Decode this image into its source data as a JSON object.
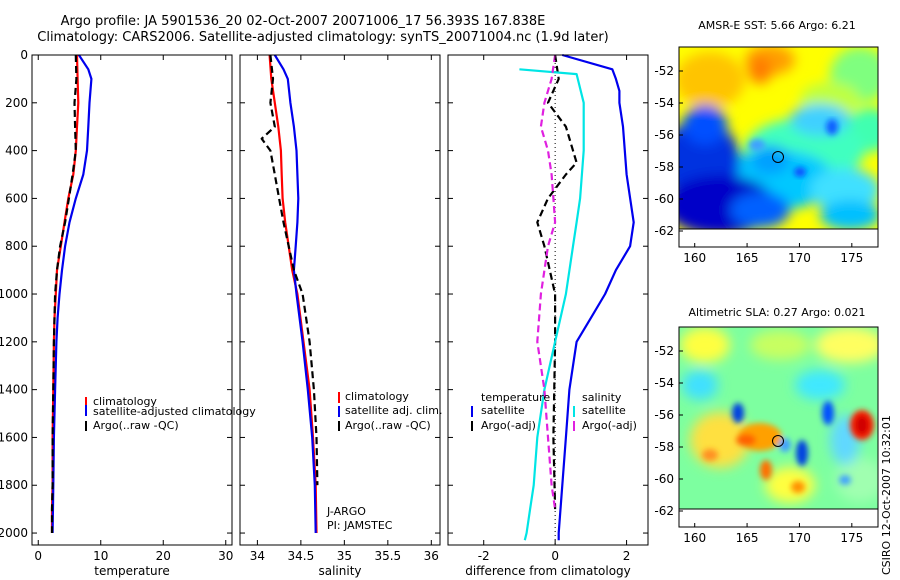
{
  "header": {
    "line1": "Argo profile: JA 5901536_20 02-Oct-2007 20071006_17 56.393S 167.838E",
    "line2": "Climatology: CARS2006. Satellite-adjusted climatology: synTS_20071004.nc (1.9d later)"
  },
  "footer_stamp": "CSIRO 12-Oct-2007 10:32:01",
  "colors": {
    "red": "#ff0000",
    "blue": "#0000ee",
    "black": "#000000",
    "cyan": "#00e5e5",
    "magenta": "#e020e0"
  },
  "chart_data": [
    {
      "id": "temperature",
      "type": "line",
      "xlabel": "temperature",
      "ylabel": "",
      "xlim": [
        -1,
        31
      ],
      "ylim": [
        2050,
        0
      ],
      "xticks": [
        0,
        10,
        20,
        30
      ],
      "yticks": [
        0,
        200,
        400,
        600,
        800,
        1000,
        1200,
        1400,
        1600,
        1800,
        2000
      ],
      "legend": {
        "placement": "lower-right",
        "entries": [
          "climatology",
          "satellite-adjusted climatology",
          "Argo(..raw -QC)"
        ]
      },
      "series": [
        {
          "name": "climatology",
          "color": "red",
          "dash": "solid",
          "x": [
            6.2,
            6.3,
            6.4,
            6.2,
            6.0,
            5.6,
            4.8,
            4.2,
            3.6,
            3.0,
            2.8,
            2.6,
            2.5,
            2.4,
            2.3,
            2.3,
            2.2,
            2.2
          ],
          "y": [
            0,
            100,
            200,
            300,
            400,
            500,
            600,
            700,
            800,
            900,
            1000,
            1100,
            1200,
            1400,
            1600,
            1800,
            1900,
            2000
          ]
        },
        {
          "name": "satellite-adjusted climatology",
          "color": "blue",
          "dash": "solid",
          "x": [
            6.5,
            8.0,
            8.5,
            8.2,
            8.0,
            7.8,
            7.2,
            6.0,
            5.0,
            4.3,
            3.8,
            3.4,
            3.1,
            2.9,
            2.7,
            2.5,
            2.4,
            2.3
          ],
          "y": [
            0,
            60,
            100,
            200,
            300,
            400,
            500,
            600,
            700,
            800,
            900,
            1000,
            1100,
            1200,
            1400,
            1600,
            1800,
            2000
          ]
        },
        {
          "name": "Argo(..raw -QC)",
          "color": "black",
          "dash": "dash",
          "x": [
            6.0,
            6.1,
            5.8,
            5.9,
            6.0,
            5.5,
            4.9,
            4.3,
            3.5,
            3.0,
            2.7,
            2.6,
            2.5,
            2.4,
            2.3,
            2.3,
            2.2,
            2.2
          ],
          "y": [
            0,
            100,
            200,
            300,
            400,
            500,
            600,
            700,
            800,
            900,
            1000,
            1100,
            1200,
            1400,
            1600,
            1800,
            1900,
            2000
          ]
        }
      ]
    },
    {
      "id": "salinity",
      "type": "line",
      "xlabel": "salinity",
      "ylabel": "",
      "xlim": [
        33.8,
        36.1
      ],
      "ylim": [
        2050,
        0
      ],
      "xticks": [
        34,
        34.5,
        35,
        35.5,
        36
      ],
      "yticks": [
        0,
        200,
        400,
        600,
        800,
        1000,
        1200,
        1400,
        1600,
        1800,
        2000
      ],
      "legend": {
        "placement": "lower-right",
        "entries": [
          "climatology",
          "satellite adj. clim.",
          "Argo(..raw -QC)"
        ]
      },
      "annotations": [
        "J-ARGO",
        "PI: JAMSTEC"
      ],
      "series": [
        {
          "name": "climatology",
          "color": "red",
          "dash": "solid",
          "x": [
            34.14,
            34.16,
            34.2,
            34.24,
            34.27,
            34.28,
            34.29,
            34.32,
            34.36,
            34.4,
            34.46,
            34.53,
            34.6,
            34.64,
            34.67,
            34.68
          ],
          "y": [
            0,
            100,
            200,
            300,
            400,
            500,
            600,
            700,
            800,
            900,
            1000,
            1200,
            1400,
            1600,
            1800,
            2000
          ]
        },
        {
          "name": "satellite adj. clim.",
          "color": "blue",
          "dash": "solid",
          "x": [
            34.2,
            34.3,
            34.35,
            34.38,
            34.42,
            34.45,
            34.46,
            34.47,
            34.46,
            34.44,
            34.42,
            34.45,
            34.52,
            34.58,
            34.63,
            34.66,
            34.67
          ],
          "y": [
            0,
            60,
            100,
            200,
            300,
            400,
            500,
            600,
            700,
            800,
            900,
            1000,
            1200,
            1400,
            1600,
            1800,
            2000
          ]
        },
        {
          "name": "Argo(..raw -QC)",
          "color": "black",
          "dash": "dash",
          "x": [
            34.15,
            34.18,
            34.15,
            34.2,
            34.05,
            34.15,
            34.2,
            34.25,
            34.3,
            34.36,
            34.42,
            34.52,
            34.6,
            34.65,
            34.68,
            34.69
          ],
          "y": [
            0,
            100,
            200,
            300,
            350,
            400,
            500,
            600,
            700,
            800,
            900,
            1000,
            1200,
            1400,
            1600,
            1800
          ]
        }
      ]
    },
    {
      "id": "difference",
      "type": "line",
      "xlabel": "difference from climatology",
      "ylabel": "",
      "xlim": [
        -3,
        2.6
      ],
      "ylim": [
        2050,
        0
      ],
      "xticks": [
        -2,
        0,
        2
      ],
      "yticks": [
        0,
        200,
        400,
        600,
        800,
        1000,
        1200,
        1400,
        1600,
        1800,
        2000
      ],
      "legend": {
        "placement": "lower-right",
        "entries": [
          "temperature",
          "satellite",
          "Argo(-adj)",
          "salinity",
          "satellite",
          "Argo(-adj)"
        ]
      },
      "series": [
        {
          "name": "satellite",
          "group": "temperature",
          "color": "blue",
          "dash": "solid",
          "x": [
            0.2,
            1.6,
            1.7,
            1.8,
            1.8,
            1.9,
            2.0,
            2.2,
            2.1,
            1.7,
            1.4,
            1.0,
            0.6,
            0.4,
            0.3,
            0.2,
            0.15,
            0.1,
            0.1
          ],
          "y": [
            0,
            60,
            100,
            150,
            200,
            300,
            500,
            700,
            800,
            900,
            1000,
            1100,
            1200,
            1400,
            1600,
            1800,
            1900,
            2000,
            2030
          ]
        },
        {
          "name": "Argo(-adj)",
          "group": "temperature",
          "color": "black",
          "dash": "dash",
          "x": [
            0,
            0.1,
            -0.2,
            0.3,
            0.5,
            0.6,
            0.3,
            -0.2,
            -0.5,
            -0.3,
            0.0,
            0.0,
            -0.05,
            0.0
          ],
          "y": [
            0,
            100,
            200,
            300,
            400,
            450,
            500,
            600,
            700,
            800,
            1000,
            1200,
            1600,
            1900
          ]
        },
        {
          "name": "satellite",
          "group": "salinity",
          "color": "cyan",
          "dash": "solid",
          "x": [
            -1.0,
            0.6,
            0.8,
            0.8,
            0.7,
            0.6,
            0.5,
            0.3,
            0.0,
            -0.3,
            -0.5,
            -0.6,
            -0.7,
            -0.8,
            -0.85
          ],
          "y": [
            60,
            80,
            200,
            400,
            600,
            700,
            800,
            1000,
            1200,
            1400,
            1600,
            1800,
            1900,
            2000,
            2030
          ]
        },
        {
          "name": "Argo(-adj)",
          "group": "salinity",
          "color": "magenta",
          "dash": "dash",
          "x": [
            0.0,
            -0.1,
            -0.3,
            -0.4,
            -0.2,
            -0.1,
            -0.05,
            0.0,
            -0.2,
            -0.4,
            -0.5,
            -0.3,
            -0.2,
            -0.1,
            0.0
          ],
          "y": [
            0,
            100,
            200,
            300,
            400,
            500,
            600,
            700,
            800,
            1000,
            1200,
            1400,
            1600,
            1800,
            1900
          ]
        }
      ]
    },
    {
      "id": "sst-map",
      "type": "heatmap",
      "title": "AMSR-E SST: 5.66 Argo: 6.21",
      "xlim": [
        158.5,
        177.5
      ],
      "ylim": [
        -63,
        -50.5
      ],
      "xticks": [
        160,
        165,
        170,
        175
      ],
      "yticks": [
        -52,
        -54,
        -56,
        -58,
        -60,
        -62
      ],
      "argo_marker": {
        "lon": 167.8,
        "lat": -56.4
      }
    },
    {
      "id": "sla-map",
      "type": "heatmap",
      "title": "Altimetric SLA: 0.27 Argo: 0.021",
      "xlim": [
        158.5,
        177.5
      ],
      "ylim": [
        -63,
        -50.5
      ],
      "xticks": [
        160,
        165,
        170,
        175
      ],
      "yticks": [
        -52,
        -54,
        -56,
        -58,
        -60,
        -62
      ],
      "argo_marker": {
        "lon": 167.8,
        "lat": -56.4
      }
    }
  ]
}
